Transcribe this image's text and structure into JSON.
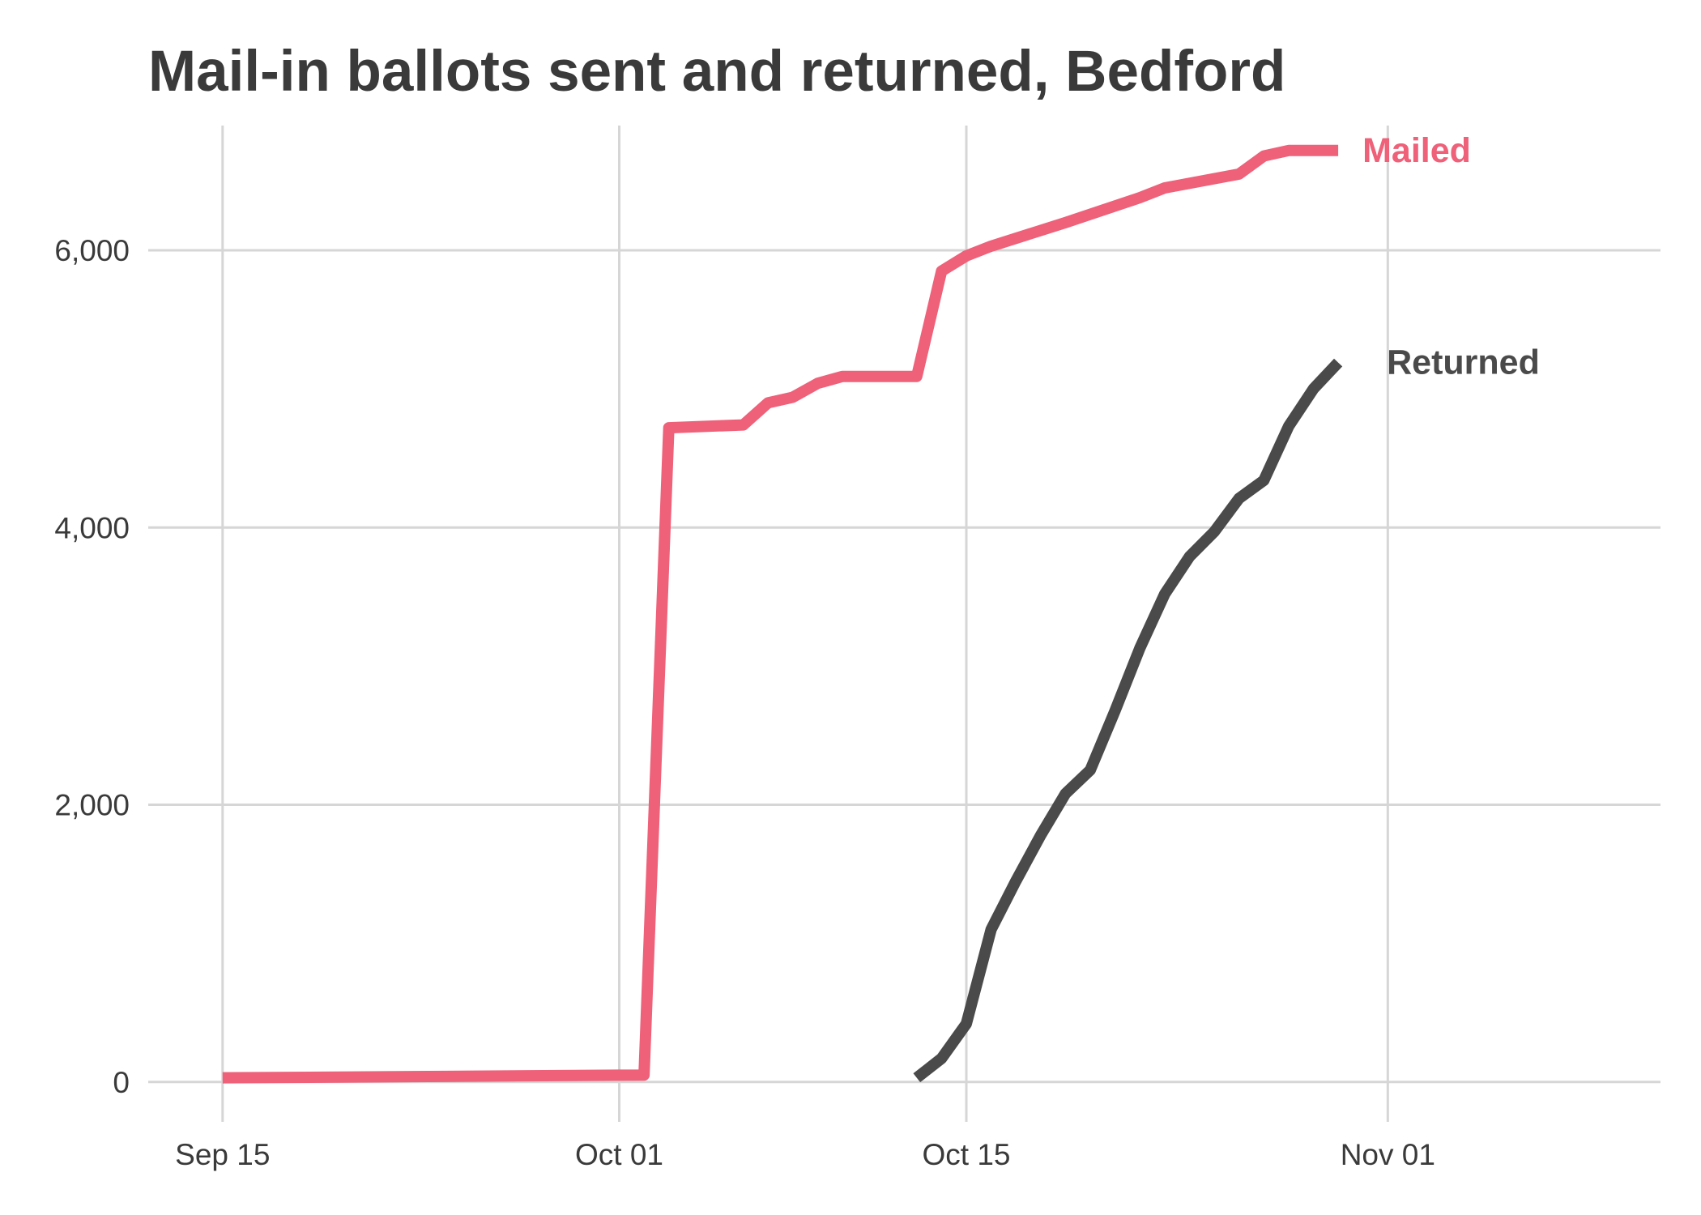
{
  "chart_data": {
    "type": "line",
    "title": "Mail-in ballots sent and returned, Bedford",
    "xlabel": "",
    "ylabel": "",
    "xlim": [
      "2020-09-12",
      "2020-11-12"
    ],
    "ylim": [
      -200,
      6900
    ],
    "x_ticks": [
      {
        "date": "2020-09-15",
        "label": "Sep 15"
      },
      {
        "date": "2020-10-01",
        "label": "Oct 01"
      },
      {
        "date": "2020-10-15",
        "label": "Oct 15"
      },
      {
        "date": "2020-11-01",
        "label": "Nov 01"
      }
    ],
    "y_ticks": [
      {
        "value": 0,
        "label": "0"
      },
      {
        "value": 2000,
        "label": "2,000"
      },
      {
        "value": 4000,
        "label": "4,000"
      },
      {
        "value": 6000,
        "label": "6,000"
      }
    ],
    "grid": true,
    "legend": "none",
    "series": [
      {
        "name": "Mailed",
        "color": "#ef6079",
        "x": [
          "2020-09-15",
          "2020-09-24",
          "2020-10-02",
          "2020-10-03",
          "2020-10-06",
          "2020-10-07",
          "2020-10-08",
          "2020-10-09",
          "2020-10-10",
          "2020-10-13",
          "2020-10-14",
          "2020-10-15",
          "2020-10-16",
          "2020-10-19",
          "2020-10-22",
          "2020-10-23",
          "2020-10-26",
          "2020-10-27",
          "2020-10-28",
          "2020-10-29",
          "2020-10-30"
        ],
        "y": [
          30,
          40,
          50,
          4720,
          4740,
          4900,
          4940,
          5040,
          5090,
          5090,
          5850,
          5960,
          6030,
          6200,
          6380,
          6450,
          6550,
          6680,
          6720,
          6720,
          6720
        ]
      },
      {
        "name": "Returned",
        "color": "#4a4a4a",
        "x": [
          "2020-10-13",
          "2020-10-14",
          "2020-10-15",
          "2020-10-16",
          "2020-10-17",
          "2020-10-18",
          "2020-10-19",
          "2020-10-20",
          "2020-10-21",
          "2020-10-22",
          "2020-10-23",
          "2020-10-24",
          "2020-10-25",
          "2020-10-26",
          "2020-10-27",
          "2020-10-28",
          "2020-10-29",
          "2020-10-30"
        ],
        "y": [
          30,
          170,
          420,
          1100,
          1450,
          1780,
          2080,
          2250,
          2680,
          3130,
          3520,
          3790,
          3970,
          4210,
          4340,
          4730,
          5000,
          5190
        ]
      }
    ]
  }
}
